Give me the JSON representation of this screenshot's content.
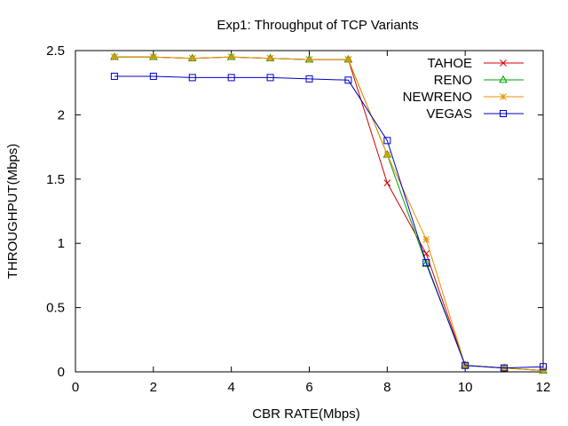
{
  "chart_data": {
    "type": "line",
    "title": "Exp1: Throughput of TCP Variants",
    "xlabel": "CBR RATE(Mbps)",
    "ylabel": "THROUGHPUT(Mbps)",
    "xlim": [
      0,
      12
    ],
    "ylim": [
      0,
      2.5
    ],
    "xticks": [
      0,
      2,
      4,
      6,
      8,
      10,
      12
    ],
    "yticks": [
      0,
      0.5,
      1,
      1.5,
      2,
      2.5
    ],
    "grid": false,
    "legend_position": "top-right",
    "x": [
      1,
      2,
      3,
      4,
      5,
      6,
      7,
      8,
      9,
      10,
      11,
      12
    ],
    "series": [
      {
        "name": "TAHOE",
        "color": "#d00000",
        "marker": "cross",
        "values": [
          2.45,
          2.45,
          2.44,
          2.45,
          2.44,
          2.43,
          2.43,
          1.47,
          0.92,
          0.05,
          0.03,
          0.01
        ]
      },
      {
        "name": "RENO",
        "color": "#00a000",
        "marker": "triangle",
        "values": [
          2.45,
          2.45,
          2.44,
          2.45,
          2.44,
          2.43,
          2.43,
          1.69,
          0.84,
          0.05,
          0.03,
          0.01
        ]
      },
      {
        "name": "NEWRENO",
        "color": "#e69100",
        "marker": "star",
        "values": [
          2.45,
          2.45,
          2.44,
          2.45,
          2.44,
          2.43,
          2.43,
          1.69,
          1.03,
          0.05,
          0.03,
          0.01
        ]
      },
      {
        "name": "VEGAS",
        "color": "#0000c0",
        "marker": "square",
        "values": [
          2.3,
          2.3,
          2.29,
          2.29,
          2.29,
          2.28,
          2.27,
          1.8,
          0.85,
          0.05,
          0.03,
          0.04
        ]
      }
    ]
  }
}
